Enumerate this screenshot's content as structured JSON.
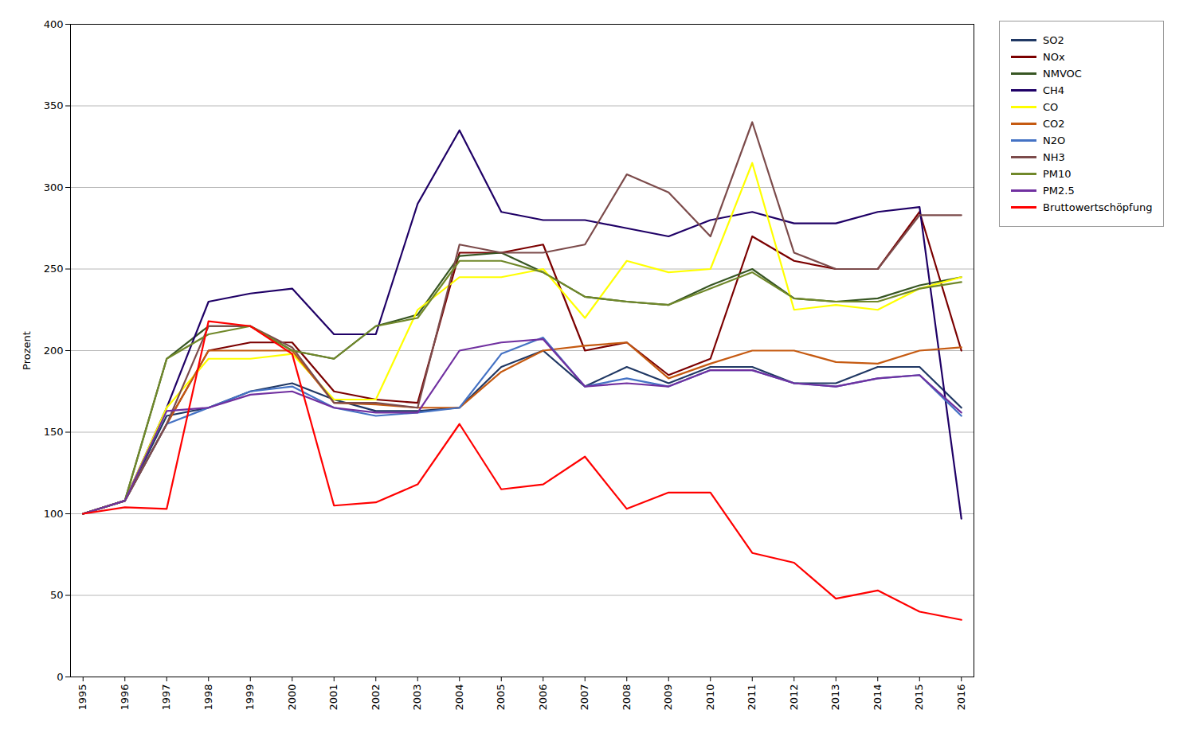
{
  "chart_data": {
    "type": "line",
    "x": [
      1995,
      1996,
      1997,
      1998,
      1999,
      2000,
      2001,
      2002,
      2003,
      2004,
      2005,
      2006,
      2007,
      2008,
      2009,
      2010,
      2011,
      2012,
      2013,
      2014,
      2015,
      2016
    ],
    "series": [
      {
        "name": "SO2",
        "color": "#203864",
        "values": [
          100,
          108,
          160,
          165,
          175,
          180,
          170,
          163,
          163,
          165,
          190,
          200,
          178,
          190,
          180,
          190,
          190,
          180,
          180,
          190,
          190,
          165
        ]
      },
      {
        "name": "NOx",
        "color": "#7b0000",
        "values": [
          100,
          108,
          155,
          200,
          205,
          205,
          175,
          170,
          168,
          260,
          260,
          265,
          200,
          205,
          185,
          195,
          270,
          255,
          250,
          250,
          285,
          200
        ]
      },
      {
        "name": "NMVOC",
        "color": "#375623",
        "values": [
          100,
          108,
          195,
          215,
          215,
          200,
          195,
          215,
          222,
          258,
          260,
          248,
          233,
          230,
          228,
          240,
          250,
          232,
          230,
          232,
          240,
          245
        ]
      },
      {
        "name": "CH4",
        "color": "#1f0066",
        "values": [
          100,
          108,
          165,
          230,
          235,
          238,
          210,
          210,
          290,
          335,
          285,
          280,
          280,
          275,
          270,
          280,
          285,
          278,
          278,
          285,
          288,
          97
        ]
      },
      {
        "name": "CO",
        "color": "#ffff00",
        "values": [
          100,
          108,
          165,
          195,
          195,
          198,
          170,
          170,
          225,
          245,
          245,
          250,
          220,
          255,
          248,
          250,
          315,
          225,
          228,
          225,
          238,
          245
        ]
      },
      {
        "name": "CO2",
        "color": "#c55a11",
        "values": [
          100,
          108,
          155,
          200,
          200,
          200,
          168,
          167,
          165,
          165,
          187,
          200,
          203,
          205,
          183,
          192,
          200,
          200,
          193,
          192,
          200,
          202
        ]
      },
      {
        "name": "N2O",
        "color": "#4472c4",
        "values": [
          100,
          108,
          155,
          165,
          175,
          178,
          165,
          160,
          162,
          165,
          198,
          208,
          178,
          183,
          178,
          188,
          188,
          180,
          178,
          183,
          185,
          160
        ]
      },
      {
        "name": "NH3",
        "color": "#7c4b4b",
        "values": [
          100,
          108,
          155,
          215,
          215,
          202,
          168,
          168,
          165,
          265,
          260,
          260,
          265,
          308,
          297,
          270,
          340,
          260,
          250,
          250,
          283,
          283
        ]
      },
      {
        "name": "PM10",
        "color": "#70882a",
        "values": [
          100,
          108,
          195,
          210,
          215,
          200,
          195,
          215,
          220,
          255,
          255,
          248,
          233,
          230,
          228,
          238,
          248,
          232,
          230,
          230,
          238,
          242
        ]
      },
      {
        "name": "PM2.5",
        "color": "#7030a0",
        "values": [
          100,
          108,
          163,
          165,
          173,
          175,
          165,
          162,
          162,
          200,
          205,
          207,
          178,
          180,
          178,
          188,
          188,
          180,
          178,
          183,
          185,
          162
        ]
      },
      {
        "name": "Bruttowertschöpfung",
        "color": "#ff0000",
        "values": [
          100,
          104,
          103,
          218,
          215,
          198,
          105,
          107,
          118,
          155,
          115,
          118,
          135,
          103,
          113,
          113,
          76,
          70,
          48,
          53,
          40,
          35
        ]
      }
    ],
    "xlim": [
      1994.7,
      2016.3
    ],
    "xticks": [
      1995,
      1996,
      1997,
      1998,
      1999,
      2000,
      2001,
      2002,
      2003,
      2004,
      2005,
      2006,
      2007,
      2008,
      2009,
      2010,
      2011,
      2012,
      2013,
      2014,
      2015,
      2016
    ],
    "ylabel": "Prozent",
    "ylim": [
      0,
      400
    ],
    "yticks": [
      0,
      50,
      100,
      150,
      200,
      250,
      300,
      350,
      400
    ],
    "grid": "y",
    "legend": "right"
  }
}
